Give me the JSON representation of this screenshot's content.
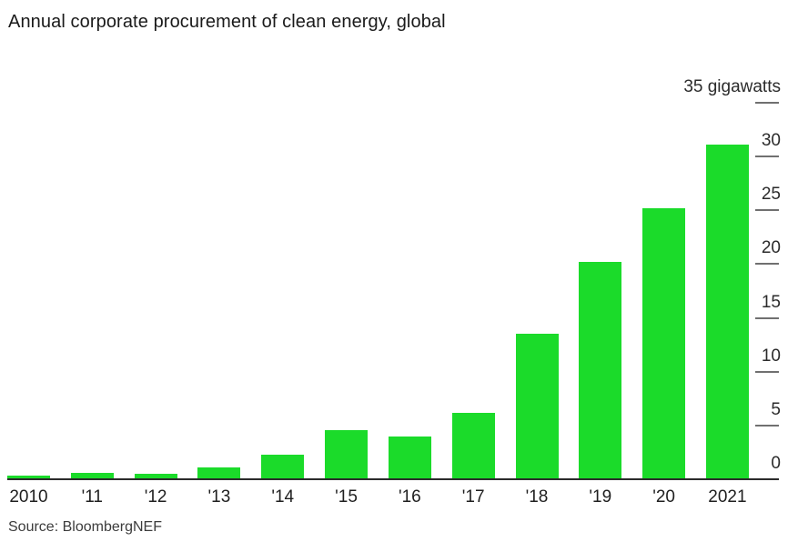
{
  "title": "Annual corporate procurement of clean energy, global",
  "source": "Source: BloombergNEF",
  "colors": {
    "bar": "#1bdb2a",
    "axis_line": "#2b2b2b",
    "tick_dash": "#707070",
    "text": "#1a1a1a",
    "source_text": "#3c3c3c",
    "background": "#ffffff"
  },
  "chart_data": {
    "type": "bar",
    "title": "Annual corporate procurement of clean energy, global",
    "categories": [
      "2010",
      "'11",
      "'12",
      "'13",
      "'14",
      "'15",
      "'16",
      "'17",
      "'18",
      "'19",
      "'20",
      "2021"
    ],
    "values": [
      0.3,
      0.55,
      0.5,
      1.1,
      2.3,
      4.6,
      4.0,
      6.2,
      13.5,
      20.2,
      25.2,
      31.1
    ],
    "unit": "gigawatts",
    "ylim": [
      0,
      35
    ],
    "yticks": [
      0,
      5,
      10,
      15,
      20,
      25,
      30,
      35
    ],
    "ytick_labels": [
      "0",
      "5",
      "10",
      "15",
      "20",
      "25",
      "30",
      "35 gigawatts"
    ],
    "ytick_side": "right",
    "grid": false,
    "legend": "none",
    "source": "Source: BloombergNEF"
  }
}
